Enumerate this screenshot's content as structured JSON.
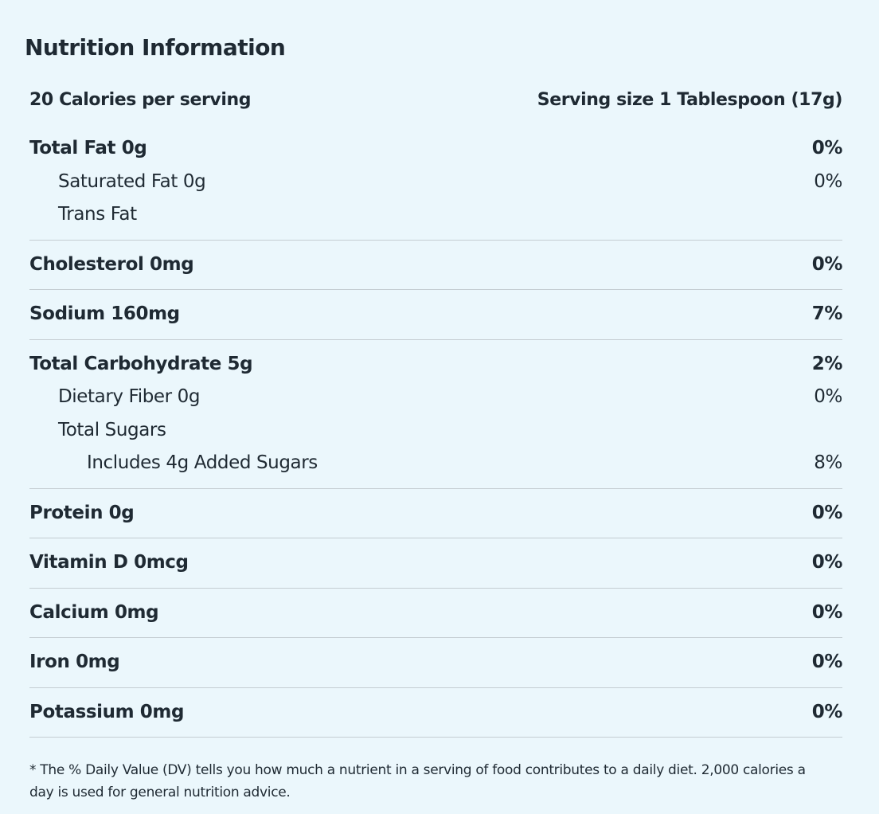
{
  "header": {
    "title": "Nutrition Information",
    "calories": "20 Calories per serving",
    "serving_size": "Serving size 1 Tablespoon (17g)"
  },
  "groups": [
    {
      "rows": [
        {
          "label": "Total Fat 0g",
          "dv": "0%",
          "level": 0,
          "bold": true
        },
        {
          "label": "Saturated Fat 0g",
          "dv": "0%",
          "level": 1,
          "bold": false
        },
        {
          "label": "Trans Fat",
          "level": 1,
          "bold": false
        }
      ]
    },
    {
      "rows": [
        {
          "label": "Cholesterol 0mg",
          "dv": "0%",
          "level": 0,
          "bold": true
        }
      ]
    },
    {
      "rows": [
        {
          "label": "Sodium 160mg",
          "dv": "7%",
          "level": 0,
          "bold": true
        }
      ]
    },
    {
      "rows": [
        {
          "label": "Total Carbohydrate 5g",
          "dv": "2%",
          "level": 0,
          "bold": true
        },
        {
          "label": "Dietary Fiber 0g",
          "dv": "0%",
          "level": 1,
          "bold": false
        },
        {
          "label": "Total Sugars",
          "level": 1,
          "bold": false
        },
        {
          "label": "Includes 4g Added Sugars",
          "dv": "8%",
          "level": 2,
          "bold": false
        }
      ]
    },
    {
      "rows": [
        {
          "label": "Protein 0g",
          "dv": "0%",
          "level": 0,
          "bold": true
        }
      ]
    },
    {
      "rows": [
        {
          "label": "Vitamin D 0mcg",
          "dv": "0%",
          "level": 0,
          "bold": true
        }
      ]
    },
    {
      "rows": [
        {
          "label": "Calcium 0mg",
          "dv": "0%",
          "level": 0,
          "bold": true
        }
      ]
    },
    {
      "rows": [
        {
          "label": "Iron 0mg",
          "dv": "0%",
          "level": 0,
          "bold": true
        }
      ]
    },
    {
      "rows": [
        {
          "label": "Potassium 0mg",
          "dv": "0%",
          "level": 0,
          "bold": true
        }
      ]
    }
  ],
  "footnote": "* The % Daily Value (DV) tells you how much a nutrient in a serving of food contributes to a daily diet. 2,000 calories a day is used for general nutrition advice."
}
